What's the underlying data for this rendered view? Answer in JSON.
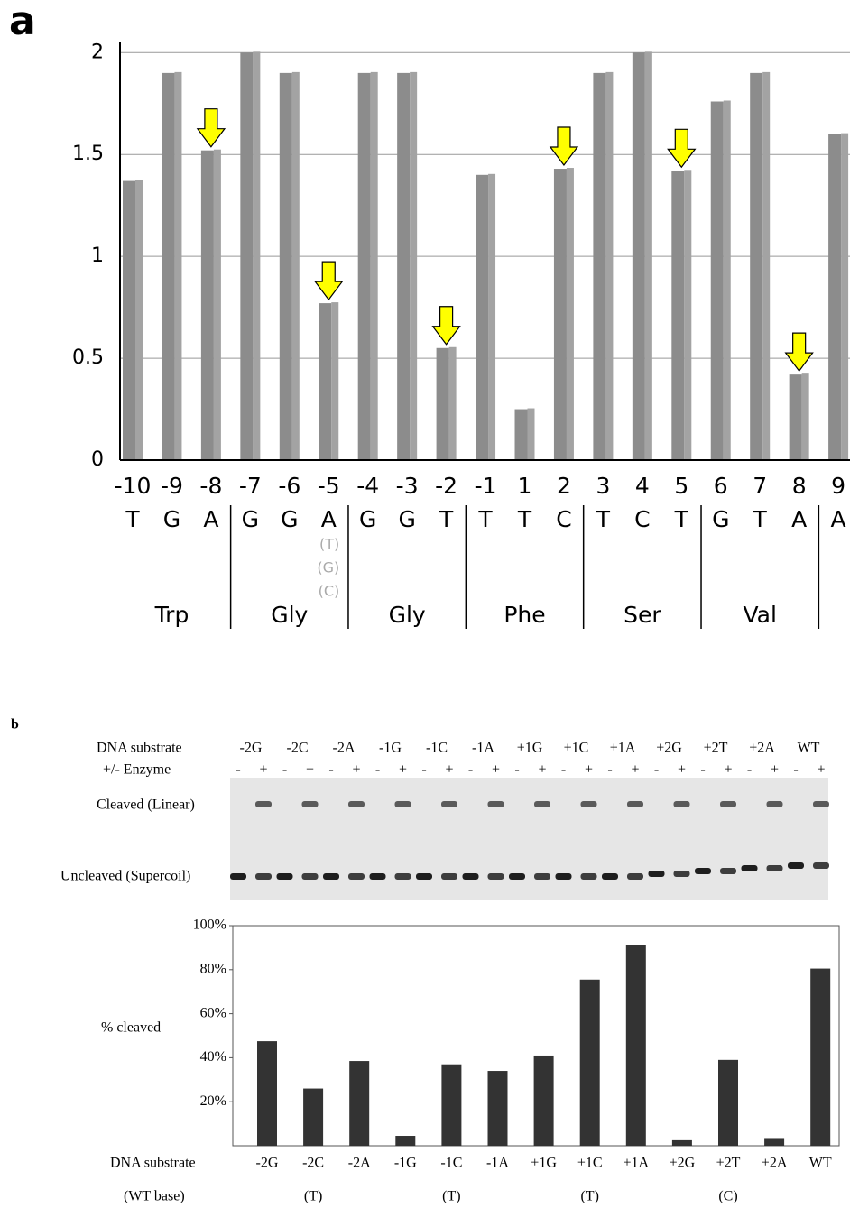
{
  "chart_data": [
    {
      "type": "bar",
      "panel": "a",
      "categories": [
        "-10",
        "-9",
        "-8",
        "-7",
        "-6",
        "-5",
        "-4",
        "-3",
        "-2",
        "-1",
        "1",
        "2",
        "3",
        "4",
        "5",
        "6",
        "7",
        "8",
        "9"
      ],
      "bases": [
        "T",
        "G",
        "A",
        "G",
        "G",
        "A",
        "G",
        "G",
        "T",
        "T",
        "T",
        "C",
        "T",
        "C",
        "T",
        "G",
        "T",
        "A",
        "A"
      ],
      "values": [
        1.37,
        1.9,
        1.52,
        2.0,
        1.9,
        0.77,
        1.9,
        1.9,
        0.55,
        1.4,
        0.25,
        1.43,
        1.9,
        2.0,
        1.42,
        1.76,
        1.9,
        0.42,
        1.6
      ],
      "color": "#8c8c8c",
      "ylim": [
        0,
        2.05
      ],
      "yticks": [
        0,
        0.5,
        1,
        1.5,
        2
      ],
      "grid": true,
      "highlight": [
        false,
        false,
        true,
        false,
        false,
        true,
        false,
        false,
        true,
        false,
        false,
        true,
        false,
        false,
        true,
        false,
        false,
        true,
        false
      ],
      "highlight_color": "#ffff00",
      "alt_bases": [
        null,
        null,
        null,
        null,
        null,
        [
          "(T)",
          "(G)",
          "(C)"
        ],
        null,
        null,
        null,
        null,
        null,
        null,
        null,
        null,
        null,
        null,
        null,
        null,
        null
      ],
      "codons": [
        "Trp",
        "Gly",
        "Gly",
        "Phe",
        "Ser",
        "Val"
      ]
    },
    {
      "type": "bar",
      "panel": "b",
      "categories": [
        "-2G",
        "-2C",
        "-2A",
        "-1G",
        "-1C",
        "-1A",
        "+1G",
        "+1C",
        "+1A",
        "+2G",
        "+2T",
        "+2A",
        "WT"
      ],
      "values": [
        47.5,
        26,
        38.5,
        4.5,
        37,
        34,
        41,
        75.5,
        91,
        2.5,
        39,
        3.5,
        80.5
      ],
      "color": "#333333",
      "ylim": [
        0,
        100
      ],
      "yticks": [
        {
          "value": 20,
          "label": "20%"
        },
        {
          "value": 40,
          "label": "40%"
        },
        {
          "value": 60,
          "label": "60%"
        },
        {
          "value": 80,
          "label": "80%"
        },
        {
          "value": 100,
          "label": "100%"
        }
      ],
      "grid": false,
      "ylabel": "% cleaved",
      "xlabel": "DNA substrate",
      "wt_base_label": "(WT base)",
      "wt_base": [
        null,
        "(T)",
        null,
        null,
        "(T)",
        null,
        null,
        "(T)",
        null,
        null,
        "(C)",
        null,
        null
      ]
    }
  ],
  "gel": {
    "substrate_label": "DNA substrate",
    "enzyme_label": "+/- Enzyme",
    "enzyme_signs": [
      "-",
      "+"
    ],
    "cleaved_label": "Cleaved (Linear)",
    "uncleaved_label": "Uncleaved (Supercoil)"
  }
}
